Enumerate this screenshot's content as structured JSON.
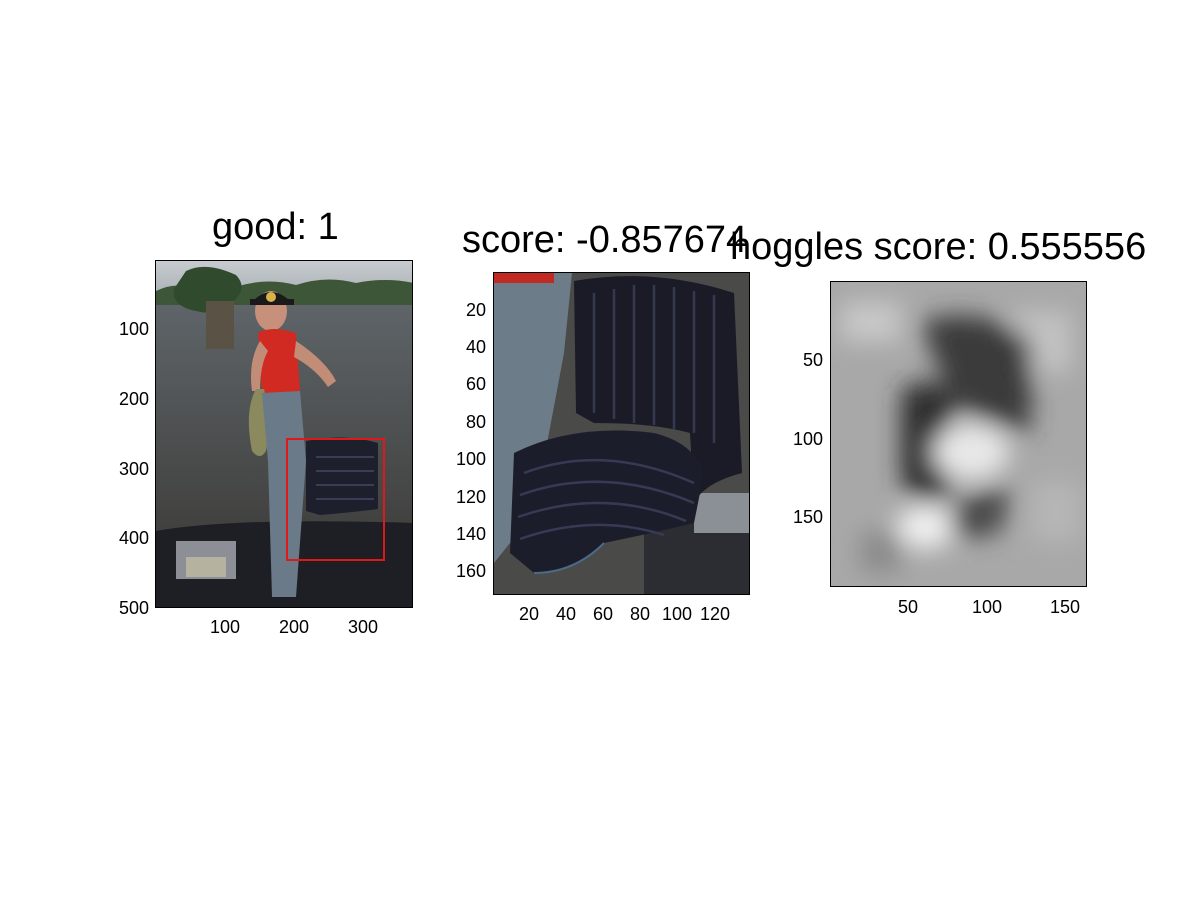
{
  "figure": {
    "panel1": {
      "title": "good: 1",
      "y_ticks": [
        "100",
        "200",
        "300",
        "400",
        "500"
      ],
      "x_ticks": [
        "100",
        "200",
        "300"
      ],
      "bbox_color": "#e01818"
    },
    "panel2": {
      "title": "score: -0.857674",
      "y_ticks": [
        "20",
        "40",
        "60",
        "80",
        "100",
        "120",
        "140",
        "160"
      ],
      "x_ticks": [
        "20",
        "40",
        "60",
        "80",
        "100",
        "120"
      ]
    },
    "panel3": {
      "title": "hoggles score: 0.555556",
      "y_ticks": [
        "50",
        "100",
        "150"
      ],
      "x_ticks": [
        "50",
        "100",
        "150"
      ]
    }
  }
}
